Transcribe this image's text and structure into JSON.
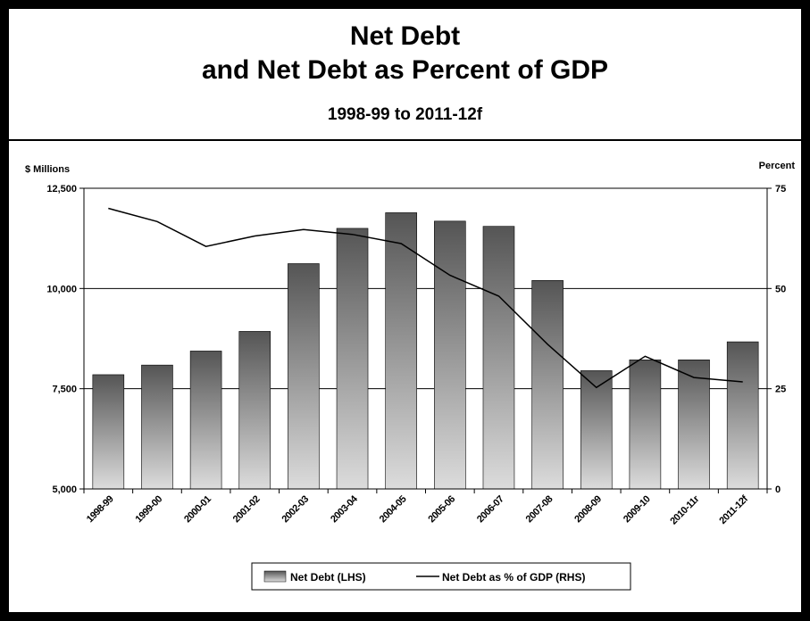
{
  "header": {
    "title_line1": "Net Debt",
    "title_line2": "and Net Debt as Percent of GDP",
    "subtitle": "1998-99 to 2011-12f"
  },
  "chart_data": {
    "type": "bar",
    "categories": [
      "1998-99",
      "1999-00",
      "2000-01",
      "2001-02",
      "2002-03",
      "2003-04",
      "2004-05",
      "2005-06",
      "2006-07",
      "2007-08",
      "2008-09",
      "2009-10",
      "2010-11r",
      "2011-12f"
    ],
    "series": [
      {
        "name": "Net Debt (LHS)",
        "type": "bar",
        "axis": "left",
        "values": [
          7850,
          8090,
          8440,
          8930,
          10620,
          11500,
          11890,
          11680,
          11550,
          10200,
          7950,
          8220,
          8220,
          8670
        ]
      },
      {
        "name": "Net Debt as % of GDP (RHS)",
        "type": "line",
        "axis": "right",
        "values": [
          70.0,
          66.7,
          60.5,
          63.1,
          64.7,
          63.5,
          61.2,
          53.3,
          48.1,
          36.1,
          25.3,
          33.1,
          27.8,
          26.7
        ]
      }
    ],
    "left_axis": {
      "label": "$ Millions",
      "min": 5000,
      "max": 12500,
      "ticks": [
        5000,
        7500,
        10000,
        12500
      ],
      "tick_labels": [
        "5,000",
        "7,500",
        "10,000",
        "12,500"
      ]
    },
    "right_axis": {
      "label": "Percent",
      "min": 0,
      "max": 75,
      "ticks": [
        0,
        25,
        50,
        75
      ],
      "tick_labels": [
        "0",
        "25",
        "50",
        "75"
      ]
    },
    "grid": true,
    "legend_position": "bottom",
    "colors": {
      "bar_top": "#555555",
      "bar_bottom": "#dcdcdc",
      "line": "#000000"
    }
  }
}
